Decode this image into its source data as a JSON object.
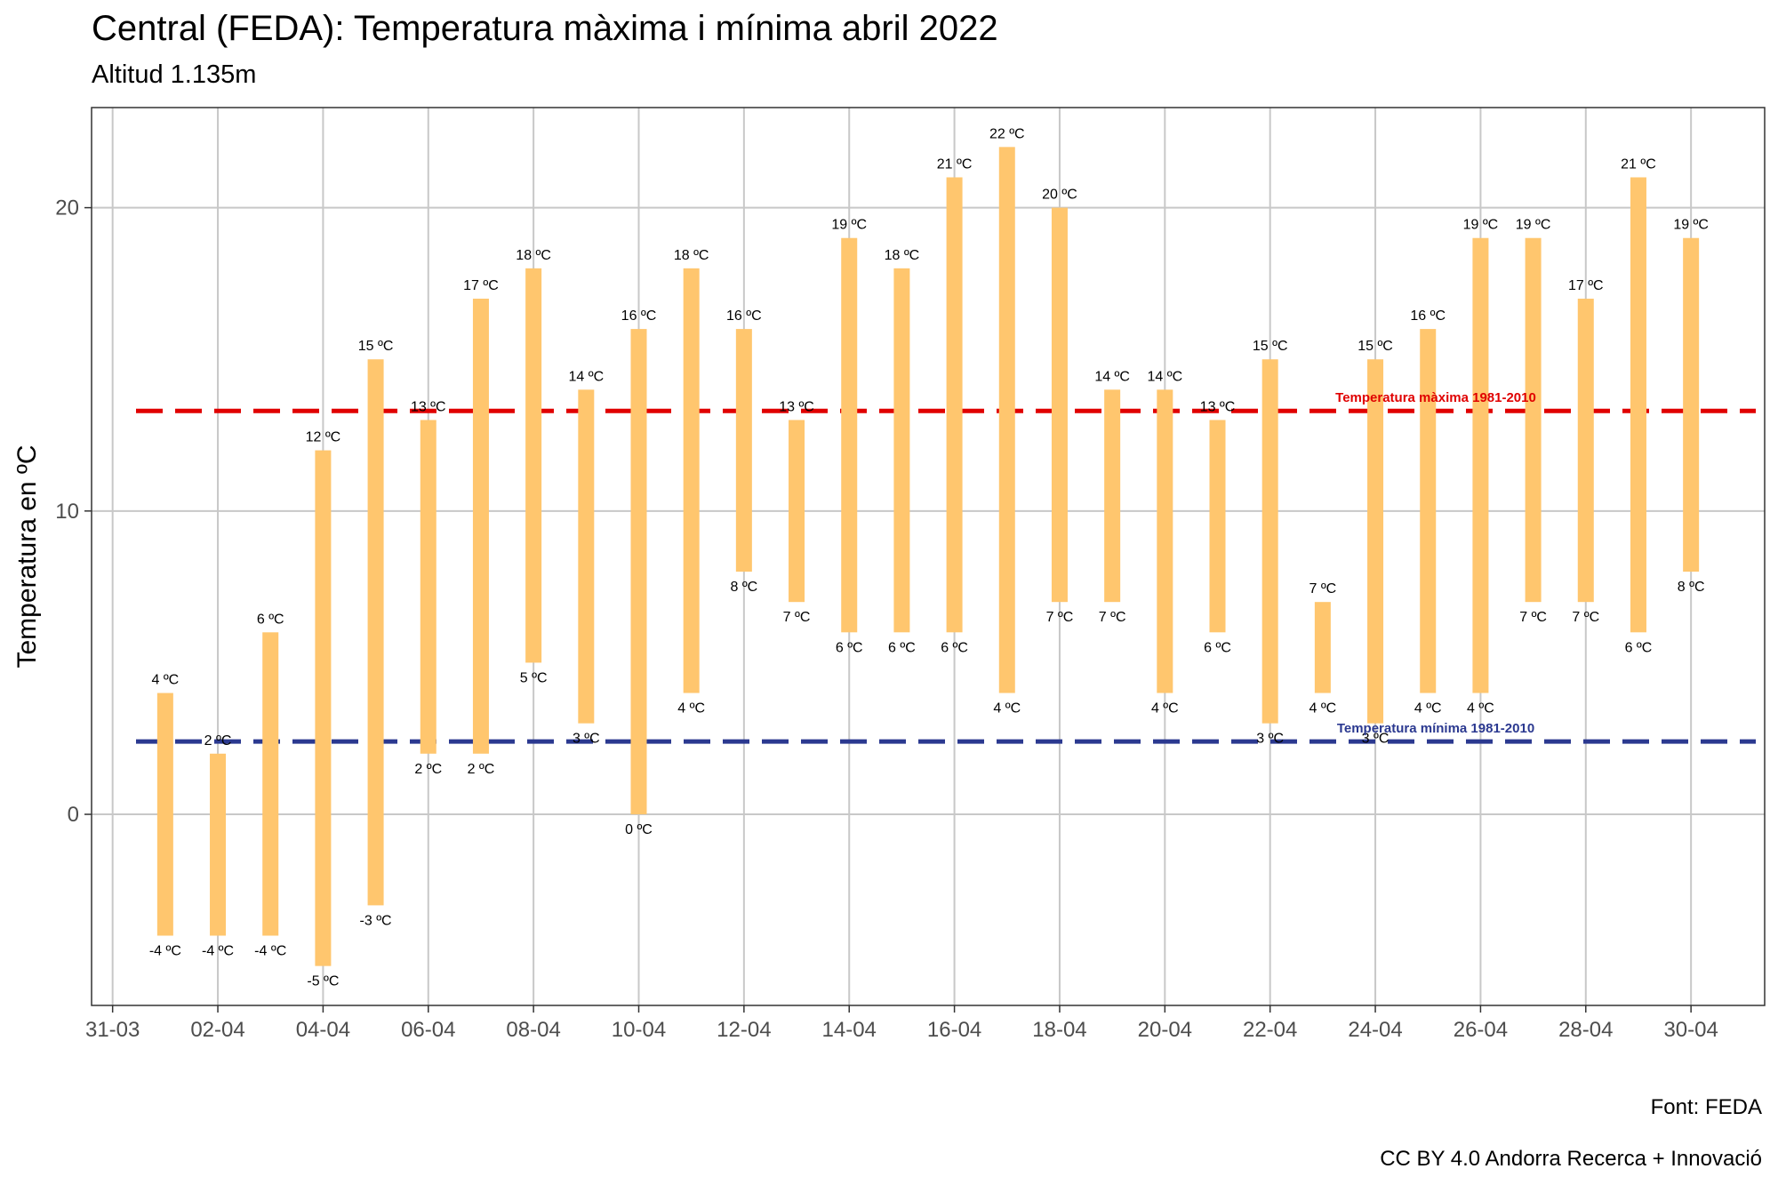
{
  "chart_data": {
    "type": "bar",
    "title": "Central (FEDA): Temperatura màxima i mínima abril 2022",
    "subtitle": "Altitud 1.135m",
    "ylabel": "Temperatura en ºC",
    "xlabel": "",
    "ylim": [
      -6.3,
      23.3
    ],
    "xlim": [
      -0.4,
      31.4
    ],
    "yticks": [
      0,
      10,
      20
    ],
    "xticks": [
      {
        "day": 0,
        "label": "31-03"
      },
      {
        "day": 2,
        "label": "02-04"
      },
      {
        "day": 4,
        "label": "04-04"
      },
      {
        "day": 6,
        "label": "06-04"
      },
      {
        "day": 8,
        "label": "08-04"
      },
      {
        "day": 10,
        "label": "10-04"
      },
      {
        "day": 12,
        "label": "12-04"
      },
      {
        "day": 14,
        "label": "14-04"
      },
      {
        "day": 16,
        "label": "16-04"
      },
      {
        "day": 18,
        "label": "18-04"
      },
      {
        "day": 20,
        "label": "20-04"
      },
      {
        "day": 22,
        "label": "22-04"
      },
      {
        "day": 24,
        "label": "24-04"
      },
      {
        "day": 26,
        "label": "26-04"
      },
      {
        "day": 28,
        "label": "28-04"
      },
      {
        "day": 30,
        "label": "30-04"
      }
    ],
    "days": [
      1,
      2,
      3,
      4,
      5,
      6,
      7,
      8,
      9,
      10,
      11,
      12,
      13,
      14,
      15,
      16,
      17,
      18,
      19,
      20,
      21,
      22,
      23,
      24,
      25,
      26,
      27,
      28,
      29,
      30
    ],
    "max": [
      4,
      2,
      6,
      12,
      15,
      13,
      17,
      18,
      14,
      16,
      18,
      16,
      13,
      19,
      18,
      21,
      22,
      20,
      14,
      14,
      13,
      15,
      7,
      15,
      16,
      19,
      19,
      17,
      21,
      19
    ],
    "min": [
      -4,
      -4,
      -4,
      -5,
      -3,
      2,
      2,
      5,
      3,
      0,
      4,
      8,
      7,
      6,
      6,
      6,
      4,
      7,
      7,
      4,
      6,
      3,
      4,
      3,
      4,
      4,
      7,
      7,
      6,
      8
    ],
    "max_labels": [
      "4 ºC",
      "2 ºC",
      "6 ºC",
      "12 ºC",
      "15 ºC",
      "13 ºC",
      "17 ºC",
      "18 ºC",
      "14 ºC",
      "16 ºC",
      "18 ºC",
      "16 ºC",
      "13 ºC",
      "19 ºC",
      "18 ºC",
      "21 ºC",
      "22 ºC",
      "20 ºC",
      "14 ºC",
      "14 ºC",
      "13 ºC",
      "15 ºC",
      "7 ºC",
      "15 ºC",
      "16 ºC",
      "19 ºC",
      "19 ºC",
      "17 ºC",
      "21 ºC",
      "19 ºC"
    ],
    "min_labels": [
      "-4 ºC",
      "-4 ºC",
      "-4 ºC",
      "-5 ºC",
      "-3 ºC",
      "2 ºC",
      "2 ºC",
      "5 ºC",
      "3 ºC",
      "0 ºC",
      "4 ºC",
      "8 ºC",
      "7 ºC",
      "6 ºC",
      "6 ºC",
      "6 ºC",
      "4 ºC",
      "7 ºC",
      "7 ºC",
      "4 ºC",
      "6 ºC",
      "3 ºC",
      "4 ºC",
      "3 ºC",
      "4 ºC",
      "4 ºC",
      "7 ºC",
      "7 ºC",
      "6 ºC",
      "8 ºC"
    ],
    "reference_lines": [
      {
        "name": "Temperatura màxima 1981-2010",
        "value": 13.3,
        "color": "#e00000"
      },
      {
        "name": "Temperatura mínima 1981-2010",
        "value": 2.4,
        "color": "#2b3990"
      }
    ],
    "bar_color": "#ffc66e",
    "grid": true
  },
  "caption": {
    "source": "Font: FEDA",
    "license": "CC BY 4.0 Andorra Recerca + Innovació"
  }
}
